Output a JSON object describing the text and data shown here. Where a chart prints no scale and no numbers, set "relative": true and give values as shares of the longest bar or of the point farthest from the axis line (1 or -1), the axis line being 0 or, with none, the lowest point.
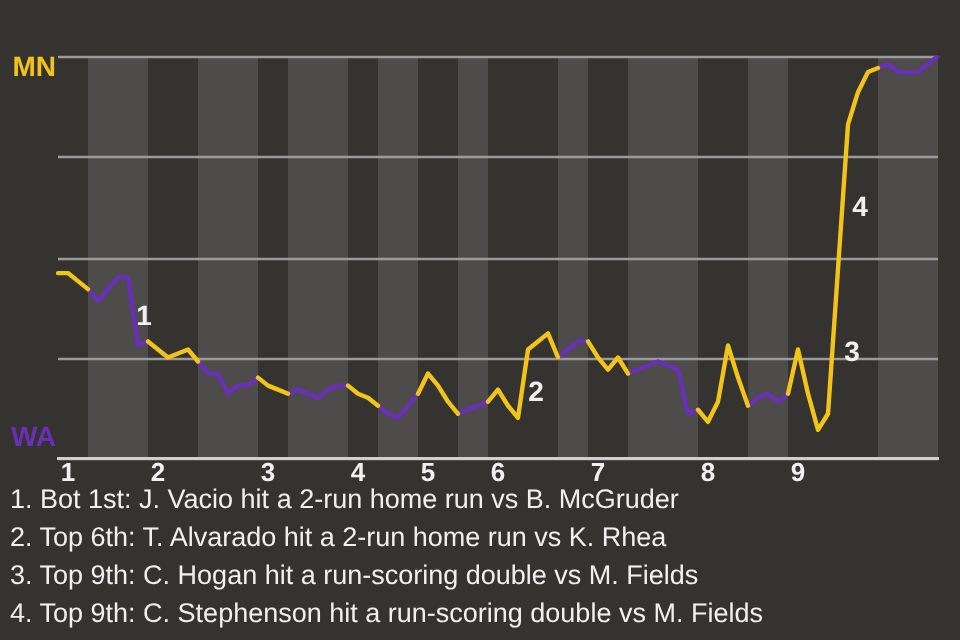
{
  "chart_data": {
    "type": "line",
    "relative": true,
    "categories": [
      null,
      "1",
      null,
      null,
      null,
      null,
      null,
      null,
      null,
      null,
      "2",
      null,
      null,
      null,
      null,
      null,
      null,
      null,
      null,
      null,
      null,
      "3",
      null,
      null,
      null,
      null,
      null,
      null,
      null,
      null,
      "4",
      null,
      null,
      null,
      null,
      null,
      null,
      "5",
      null,
      null,
      null,
      null,
      null,
      null,
      "6",
      null,
      null,
      null,
      null,
      null,
      null,
      null,
      null,
      null,
      "7",
      null,
      null,
      null,
      null,
      null,
      null,
      null,
      null,
      null,
      null,
      "8",
      null,
      null,
      null,
      null,
      null,
      null,
      null,
      null,
      "9",
      null,
      null,
      null,
      null,
      null,
      null,
      null,
      null,
      null,
      null,
      null,
      null,
      null,
      null
    ],
    "series": [
      {
        "name": "MN",
        "color": "#f2c417",
        "values": [
          0.46,
          0.46,
          0.44,
          0.42,
          null,
          null,
          null,
          null,
          null,
          0.29,
          0.27,
          0.25,
          0.26,
          0.27,
          0.24,
          null,
          null,
          null,
          null,
          null,
          0.2,
          0.18,
          0.17,
          0.16,
          null,
          null,
          null,
          null,
          null,
          0.18,
          0.16,
          0.15,
          0.13,
          null,
          null,
          null,
          0.16,
          0.21,
          0.18,
          0.14,
          0.11,
          null,
          null,
          0.14,
          0.17,
          0.13,
          0.1,
          0.27,
          0.29,
          0.31,
          0.25,
          null,
          null,
          0.29,
          0.25,
          0.22,
          0.25,
          0.21,
          null,
          null,
          null,
          null,
          null,
          null,
          0.12,
          0.09,
          0.14,
          0.28,
          0.2,
          0.13,
          null,
          null,
          null,
          0.16,
          0.27,
          0.16,
          0.07,
          0.11,
          0.47,
          0.83,
          0.91,
          0.96,
          0.97,
          null,
          null,
          null,
          null,
          null,
          null
        ]
      },
      {
        "name": "WA",
        "color": "#6a2fb8",
        "values": [
          null,
          null,
          null,
          0.42,
          0.39,
          0.42,
          0.45,
          0.45,
          0.28,
          0.29,
          null,
          null,
          null,
          null,
          0.24,
          0.21,
          0.21,
          0.16,
          0.18,
          0.18,
          0.2,
          null,
          null,
          0.16,
          0.17,
          0.16,
          0.15,
          0.17,
          0.18,
          0.18,
          null,
          null,
          0.13,
          0.11,
          0.1,
          0.13,
          0.16,
          null,
          null,
          null,
          0.11,
          0.12,
          0.13,
          0.14,
          null,
          null,
          null,
          null,
          null,
          null,
          0.25,
          0.27,
          0.29,
          0.29,
          null,
          null,
          null,
          0.21,
          0.22,
          0.23,
          0.24,
          0.23,
          0.22,
          0.11,
          0.12,
          null,
          null,
          null,
          null,
          0.13,
          0.15,
          0.16,
          0.14,
          0.16,
          null,
          null,
          null,
          null,
          null,
          null,
          null,
          null,
          0.97,
          0.98,
          0.96,
          0.96,
          0.96,
          0.98,
          1.0
        ]
      }
    ],
    "grid": "y",
    "marker": "none",
    "line_style": "solid",
    "legend": "left",
    "annotations": [
      "1",
      "2",
      "3",
      "4",
      "1. Bot 1st: J. Vacio hit a 2-run home run vs B. McGruder",
      "2. Top 6th: T. Alvarado hit a 2-run home run vs K. Rhea",
      "3. Top 9th: C. Hogan hit a run-scoring double vs M. Fields",
      "4. Top 9th: C. Stephenson hit a run-scoring double vs M. Fields"
    ]
  }
}
